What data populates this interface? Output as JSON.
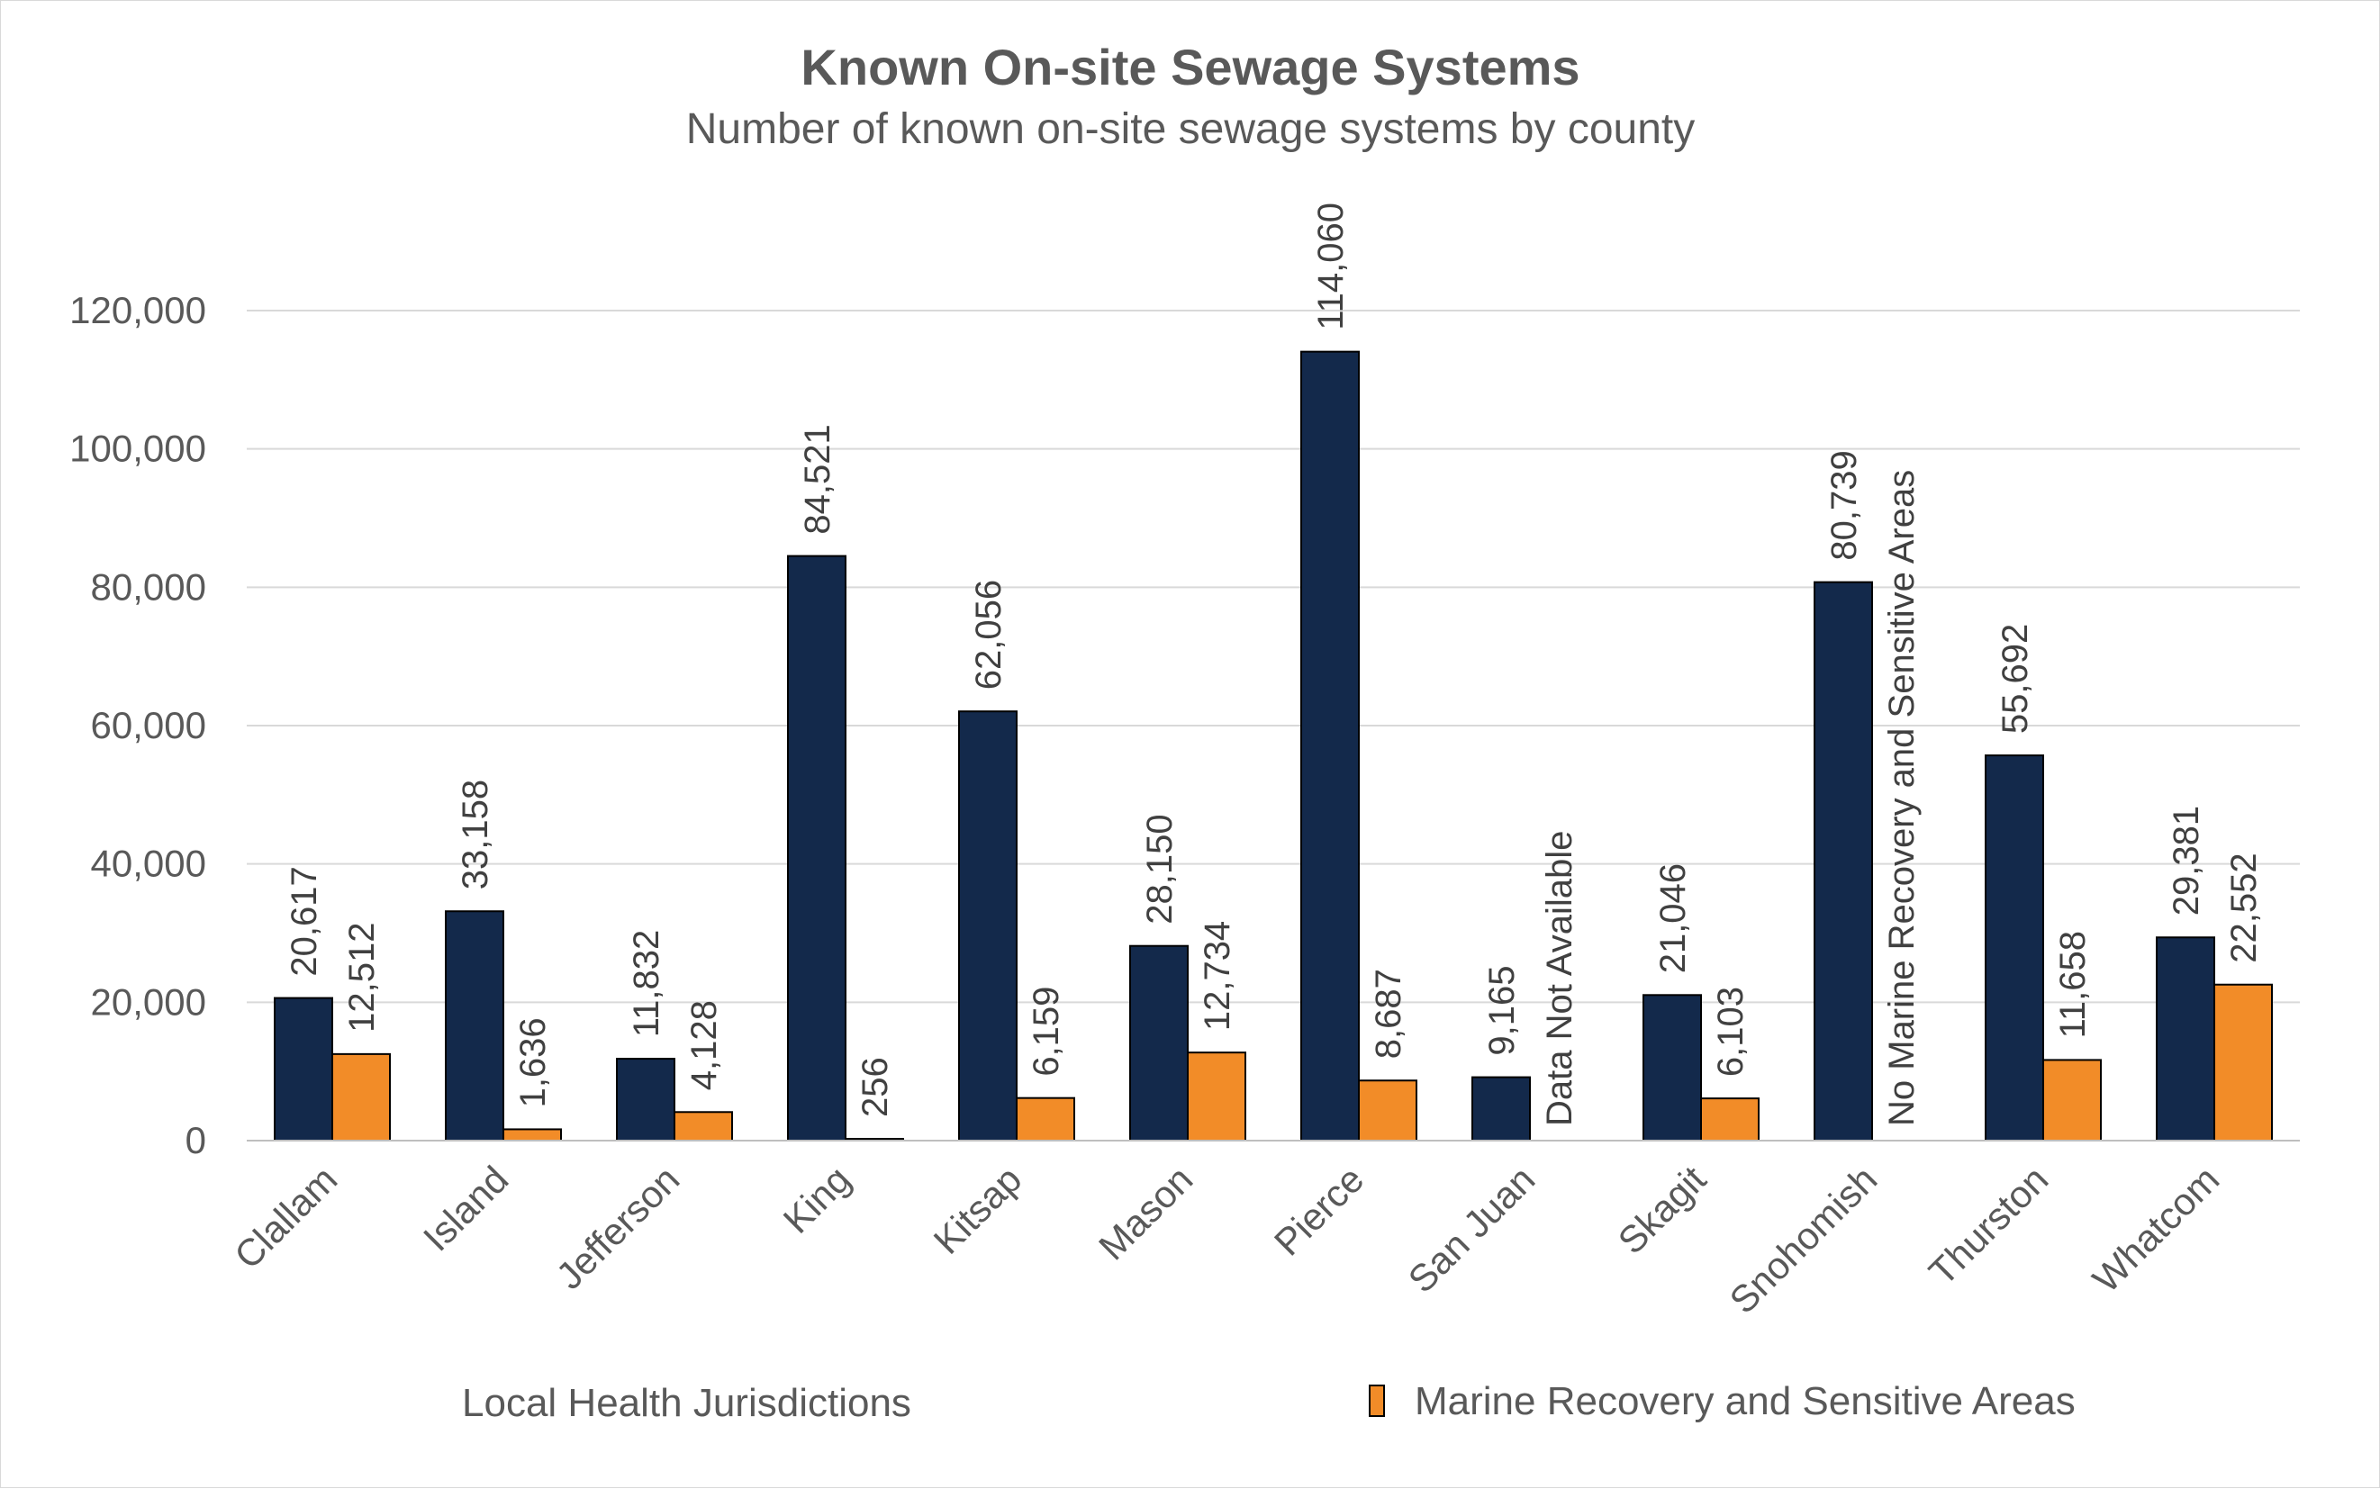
{
  "chart_data": {
    "type": "bar",
    "title": "Known On-site Sewage Systems",
    "subtitle": "Number of known on-site sewage systems by county",
    "categories": [
      "Clallam",
      "Island",
      "Jefferson",
      "King",
      "Kitsap",
      "Mason",
      "Pierce",
      "San Juan",
      "Skagit",
      "Snohomish",
      "Thurston",
      "Whatcom"
    ],
    "series": [
      {
        "name": "Local Health Jurisdictions",
        "color": "#13294b",
        "values": [
          20617,
          33158,
          11832,
          84521,
          62056,
          28150,
          114060,
          9165,
          21046,
          80739,
          55692,
          29381
        ],
        "labels": [
          "20,617",
          "33,158",
          "11,832",
          "84,521",
          "62,056",
          "28,150",
          "114,060",
          "9,165",
          "21,046",
          "80,739",
          "55,692",
          "29,381"
        ]
      },
      {
        "name": "Marine Recovery and Sensitive Areas",
        "color": "#f28c28",
        "values": [
          12512,
          1636,
          4128,
          256,
          6159,
          12734,
          8687,
          null,
          6103,
          null,
          11658,
          22552
        ],
        "labels": [
          "12,512",
          "1,636",
          "4,128",
          "256",
          "6,159",
          "12,734",
          "8,687",
          "Data Not Available",
          "6,103",
          "No Marine Recovery and Sensitive Areas",
          "11,658",
          "22,552"
        ]
      }
    ],
    "ylim": [
      0,
      120000
    ],
    "yticks": [
      0,
      20000,
      40000,
      60000,
      80000,
      100000,
      120000
    ],
    "ytick_labels": [
      "0",
      "20,000",
      "40,000",
      "60,000",
      "80,000",
      "100,000",
      "120,000"
    ],
    "grid": true,
    "legend": "bottom"
  }
}
